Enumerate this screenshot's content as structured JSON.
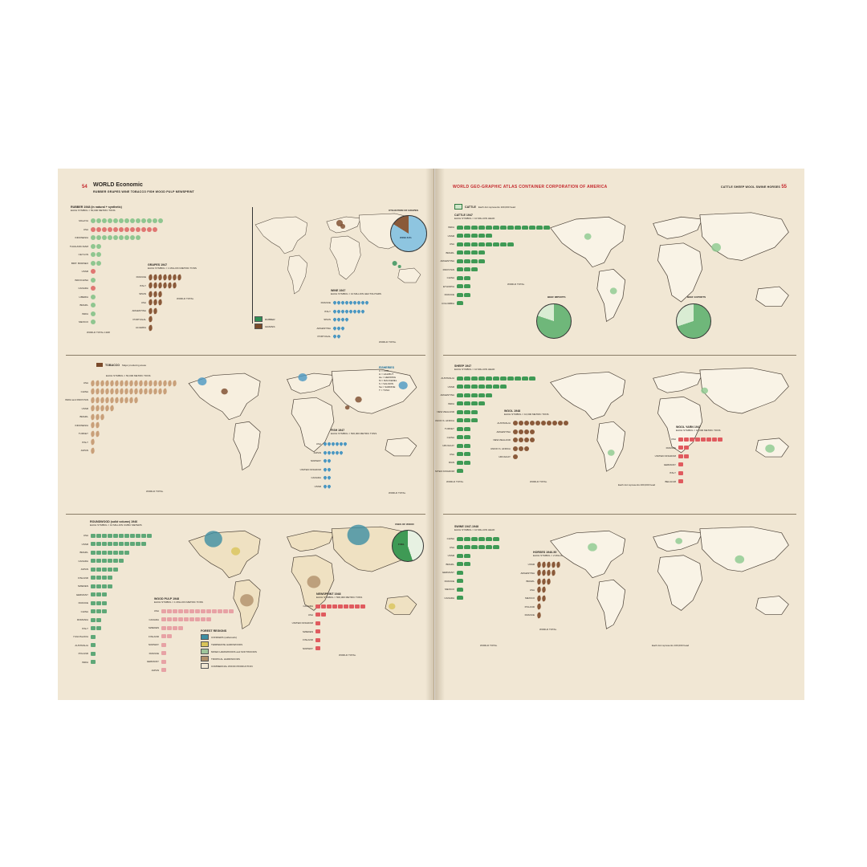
{
  "left_page": {
    "page_number": "54",
    "title": "WORLD Economic",
    "subtitle": "RUBBER  GRAPES  WINE  TOBACCO  FISH  WOOD  PULP  NEWSPRINT",
    "rubber": {
      "title": "RUBBER 1948 (in natural + synthetic)",
      "unit": "EACH SYMBOL = 50,000 METRIC TONS",
      "rows": [
        {
          "label": "MALAYA",
          "count": 13,
          "color": "#8fc690"
        },
        {
          "label": "USA",
          "count": 12,
          "color": "#e07672"
        },
        {
          "label": "INDONESIA",
          "count": 9,
          "color": "#8fc690"
        },
        {
          "label": "THAILAND-SIAM",
          "count": 2,
          "color": "#8fc690"
        },
        {
          "label": "CEYLON",
          "count": 2,
          "color": "#8fc690"
        },
        {
          "label": "BRIT. BORNEO",
          "count": 2,
          "color": "#8fc690"
        },
        {
          "label": "USSR",
          "count": 1,
          "color": "#e07672"
        },
        {
          "label": "INDOCHINA",
          "count": 1,
          "color": "#8fc690"
        },
        {
          "label": "CANADA",
          "count": 1,
          "color": "#e07672"
        },
        {
          "label": "LIBERIA",
          "count": 1,
          "color": "#8fc690"
        },
        {
          "label": "BRAZIL",
          "count": 1,
          "color": "#8fc690"
        },
        {
          "label": "INDIA",
          "count": 1,
          "color": "#8fc690"
        },
        {
          "label": "MEXICO",
          "count": 1,
          "color": "#8fc690"
        }
      ],
      "total": "WORLD TOTAL 1948",
      "pie_title": "UTILIZATION OF GRAPES",
      "pie_label": "WINE 84%",
      "pie_share": 0.84
    },
    "grapes": {
      "title": "GRAPES 1947",
      "unit": "EACH SYMBOL = 1 MILLION METRIC TONS",
      "rows": [
        {
          "label": "FRANCE",
          "count": 7
        },
        {
          "label": "ITALY",
          "count": 6
        },
        {
          "label": "SPAIN",
          "count": 3
        },
        {
          "label": "USA",
          "count": 3
        },
        {
          "label": "ARGENTINA",
          "count": 2
        },
        {
          "label": "PORTUGAL",
          "count": 1
        },
        {
          "label": "ALGERIA",
          "count": 1
        }
      ],
      "total": "WORLD TOTAL"
    },
    "wine": {
      "title": "WINE 1947",
      "unit": "EACH SYMBOL = 10 MILLION HECTOLITERS",
      "rows": [
        {
          "label": "FRANCE",
          "count": 9
        },
        {
          "label": "ITALY",
          "count": 8
        },
        {
          "label": "SPAIN",
          "count": 4
        },
        {
          "label": "ARGENTINA",
          "count": 3
        },
        {
          "label": "PORTUGAL",
          "count": 2
        }
      ],
      "total": "WORLD TOTAL",
      "legend": [
        {
          "label": "RUBBER",
          "color": "#2f8f55"
        },
        {
          "label": "GRAPES",
          "color": "#7a4a2a"
        }
      ]
    },
    "tobacco": {
      "title": "TOBACCO",
      "legend_label": "Major producing areas",
      "unit": "EACH SYMBOL = 50,000 METRIC TONS",
      "rows": [
        {
          "label": "USA",
          "count": 18
        },
        {
          "label": "CHINA",
          "count": 16
        },
        {
          "label": "INDIA and PAKISTAN",
          "count": 10
        },
        {
          "label": "USSR",
          "count": 5
        },
        {
          "label": "BRAZIL",
          "count": 3
        },
        {
          "label": "INDONESIA",
          "count": 2
        },
        {
          "label": "TURKEY",
          "count": 2
        },
        {
          "label": "ITALY",
          "count": 1
        },
        {
          "label": "JAPAN",
          "count": 1
        }
      ],
      "total": "WORLD TOTAL"
    },
    "fisheries": {
      "title": "FISHERIES",
      "items": [
        "C = COD",
        "H = HALIBUT",
        "He = HERRING",
        "M = MACKEREL",
        "S = SALMON",
        "Sa = SARDINE",
        "T = TUNA"
      ]
    },
    "fish": {
      "title": "FISH 1947",
      "unit": "EACH SYMBOL = 500,000 METRIC TONS",
      "rows": [
        {
          "label": "USA",
          "count": 6
        },
        {
          "label": "JAPAN",
          "count": 5
        },
        {
          "label": "NORWAY",
          "count": 2
        },
        {
          "label": "UNITED KINGDOM",
          "count": 2
        },
        {
          "label": "CANADA",
          "count": 2
        },
        {
          "label": "USSR",
          "count": 2
        }
      ],
      "total": "WORLD TOTAL"
    },
    "roundwood": {
      "title": "ROUNDWOOD (solid volume) 1946",
      "unit": "EACH SYMBOL = 10 MILLION CUBIC METERS",
      "rows": [
        {
          "label": "USA",
          "count": 11
        },
        {
          "label": "USSR",
          "count": 10
        },
        {
          "label": "BRAZIL",
          "count": 7
        },
        {
          "label": "CANADA",
          "count": 6
        },
        {
          "label": "JAPAN",
          "count": 5
        },
        {
          "label": "FINLAND",
          "count": 4
        },
        {
          "label": "SWEDEN",
          "count": 4
        },
        {
          "label": "GERMANY",
          "count": 3
        },
        {
          "label": "FRANCE",
          "count": 3
        },
        {
          "label": "CHINA",
          "count": 3
        },
        {
          "label": "ROMANIA",
          "count": 2
        },
        {
          "label": "ITALY",
          "count": 2
        },
        {
          "label": "YUGOSLAVIA",
          "count": 1
        },
        {
          "label": "AUSTRALIA",
          "count": 1
        },
        {
          "label": "POLAND",
          "count": 1
        },
        {
          "label": "INDIA",
          "count": 1
        }
      ],
      "pie_title": "USES OF WOOD",
      "pie_label": "FUEL",
      "pie_share": 0.45
    },
    "wood_pulp": {
      "title": "WOOD PULP 1948",
      "unit": "EACH SYMBOL = 1 MILLION METRIC TONS",
      "rows": [
        {
          "label": "USA",
          "count": 13
        },
        {
          "label": "CANADA",
          "count": 9
        },
        {
          "label": "SWEDEN",
          "count": 4
        },
        {
          "label": "FINLAND",
          "count": 2
        },
        {
          "label": "NORWAY",
          "count": 1
        },
        {
          "label": "FRANCE",
          "count": 1
        },
        {
          "label": "GERMANY",
          "count": 1
        },
        {
          "label": "JAPAN",
          "count": 1
        }
      ]
    },
    "newsprint": {
      "title": "NEWSPRINT 1948",
      "unit": "EACH SYMBOL = 500,000 METRIC TONS",
      "rows": [
        {
          "label": "CANADA",
          "count": 9
        },
        {
          "label": "USA",
          "count": 2
        },
        {
          "label": "UNITED KINGDOM",
          "count": 1
        },
        {
          "label": "SWEDEN",
          "count": 1
        },
        {
          "label": "FINLAND",
          "count": 1
        },
        {
          "label": "NORWAY",
          "count": 1
        }
      ],
      "total": "WORLD TOTAL"
    },
    "forest_regions": {
      "title": "FOREST REGIONS",
      "items": [
        {
          "label": "CONIFERS (softwoods)",
          "color": "#3d8fa3"
        },
        {
          "label": "TEMPERATE HARDWOODS",
          "color": "#d9c45a"
        },
        {
          "label": "MIXED HARDWOODS and SOFTWOODS",
          "color": "#9ec49a"
        },
        {
          "label": "TROPICAL HARDWOODS",
          "color": "#b0906a"
        },
        {
          "label": "COMMERCIAL WOOD PRODUCTION",
          "color": "#f1e7d4"
        }
      ]
    }
  },
  "right_page": {
    "page_number": "55",
    "header": "WORLD GEO-GRAPHIC ATLAS   CONTAINER CORPORATION OF AMERICA",
    "header_right": "CATTLE  SHEEP  WOOL  SWINE  HORSES",
    "cattle": {
      "title": "CATTLE 1947",
      "unit": "EACH SYMBOL = 10 MILLION HEAD",
      "dot_note": "Each dot represents 100,000 head",
      "rows": [
        {
          "label": "INDIA",
          "count": 13
        },
        {
          "label": "USSR",
          "count": 5
        },
        {
          "label": "USA",
          "count": 8
        },
        {
          "label": "BRAZIL",
          "count": 4
        },
        {
          "label": "ARGENTINA",
          "count": 4
        },
        {
          "label": "PAKISTAN",
          "count": 3
        },
        {
          "label": "CHINA",
          "count": 2
        },
        {
          "label": "ETHIOPIA",
          "count": 2
        },
        {
          "label": "FRANCE",
          "count": 2
        },
        {
          "label": "COLOMBIA",
          "count": 1
        }
      ],
      "total": "WORLD TOTAL",
      "imports_title": "BEEF IMPORTS",
      "exports_title": "BEEF EXPORTS"
    },
    "sheep": {
      "title": "SHEEP 1947",
      "unit": "EACH SYMBOL = 10 MILLION HEAD",
      "dot_note": "Each dot represents 200,000 head",
      "rows": [
        {
          "label": "AUSTRALIA",
          "count": 11
        },
        {
          "label": "USSR",
          "count": 7
        },
        {
          "label": "ARGENTINA",
          "count": 5
        },
        {
          "label": "INDIA",
          "count": 4
        },
        {
          "label": "NEW ZEALAND",
          "count": 3
        },
        {
          "label": "UNION S. AFRICA",
          "count": 3
        },
        {
          "label": "TURKEY",
          "count": 2
        },
        {
          "label": "CHINA",
          "count": 2
        },
        {
          "label": "URUGUAY",
          "count": 2
        },
        {
          "label": "USA",
          "count": 2
        },
        {
          "label": "IRAN",
          "count": 2
        },
        {
          "label": "UNITED KINGDOM",
          "count": 1
        }
      ],
      "total": "WORLD TOTAL"
    },
    "wool": {
      "title": "WOOL 1948",
      "unit": "EACH SYMBOL = 10,000 METRIC TONS",
      "rows": [
        {
          "label": "AUSTRALIA",
          "count": 10
        },
        {
          "label": "ARGENTINA",
          "count": 4
        },
        {
          "label": "NEW ZEALAND",
          "count": 4
        },
        {
          "label": "UNION S. AFRICA",
          "count": 3
        },
        {
          "label": "URUGUAY",
          "count": 1
        }
      ],
      "total": "WORLD TOTAL"
    },
    "wool_yarn": {
      "title": "WOOL YARN 1947",
      "unit": "EACH SYMBOL = 10,000 METRIC TONS",
      "rows": [
        {
          "label": "USA",
          "count": 8
        },
        {
          "label": "FRANCE",
          "count": 2
        },
        {
          "label": "UNITED KINGDOM",
          "count": 2
        },
        {
          "label": "GERMANY",
          "count": 1
        },
        {
          "label": "ITALY",
          "count": 1
        },
        {
          "label": "BELGIUM",
          "count": 1
        }
      ]
    },
    "swine": {
      "title": "SWINE 1947-1948",
      "unit": "EACH SYMBOL = 10 MILLION HEAD",
      "dot_note": "Each dot represents 100,000 head",
      "rows": [
        {
          "label": "CHINA",
          "count": 6
        },
        {
          "label": "USA",
          "count": 6
        },
        {
          "label": "USSR",
          "count": 2
        },
        {
          "label": "BRAZIL",
          "count": 2
        },
        {
          "label": "GERMANY",
          "count": 1
        },
        {
          "label": "FRANCE",
          "count": 1
        },
        {
          "label": "MEXICO",
          "count": 1
        },
        {
          "label": "CANADA",
          "count": 1
        }
      ],
      "total": "WORLD TOTAL"
    },
    "horses": {
      "title": "HORSES 1946-50",
      "unit": "EACH SYMBOL = 2 MILLION HEAD",
      "rows": [
        {
          "label": "USSR",
          "count": 5
        },
        {
          "label": "ARGENTINA",
          "count": 4
        },
        {
          "label": "BRAZIL",
          "count": 3
        },
        {
          "label": "USA",
          "count": 2
        },
        {
          "label": "MEXICO",
          "count": 2
        },
        {
          "label": "POLAND",
          "count": 1
        },
        {
          "label": "FRANCE",
          "count": 1
        }
      ],
      "total": "WORLD TOTAL"
    }
  },
  "colors": {
    "paper": "#f1e7d4",
    "green": "#6fb77a",
    "brown": "#8a5a3a",
    "blue": "#4a97c2",
    "red": "#e05b5f",
    "pink": "#e7a2a5"
  }
}
